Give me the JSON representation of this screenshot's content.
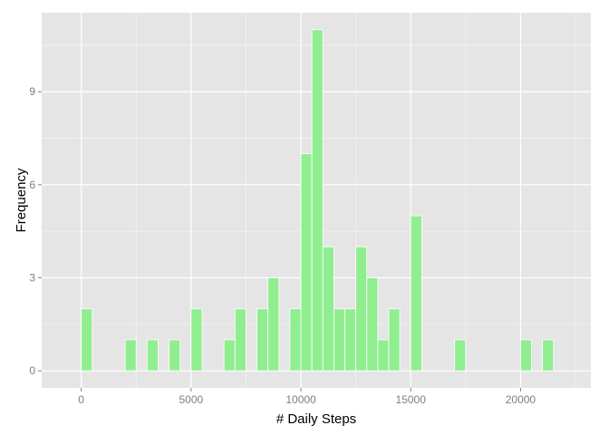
{
  "chart_data": {
    "type": "bar",
    "title": "",
    "xlabel": "# Daily Steps",
    "ylabel": "Frequency",
    "xlim": [
      -1800,
      23200
    ],
    "ylim": [
      -0.55,
      11.55
    ],
    "x_ticks": [
      0,
      5000,
      10000,
      15000,
      20000
    ],
    "x_tick_labels": [
      "0",
      "5000",
      "10000",
      "15000",
      "20000"
    ],
    "y_ticks": [
      0,
      3,
      6,
      9
    ],
    "y_tick_labels": [
      "0",
      "3",
      "6",
      "9"
    ],
    "grid": true,
    "bin_width": 500,
    "bins": [
      {
        "start": 0,
        "count": 2
      },
      {
        "start": 2000,
        "count": 1
      },
      {
        "start": 3000,
        "count": 1
      },
      {
        "start": 4000,
        "count": 1
      },
      {
        "start": 5000,
        "count": 2
      },
      {
        "start": 6500,
        "count": 1
      },
      {
        "start": 7000,
        "count": 2
      },
      {
        "start": 8000,
        "count": 2
      },
      {
        "start": 8500,
        "count": 3
      },
      {
        "start": 9500,
        "count": 2
      },
      {
        "start": 10000,
        "count": 7
      },
      {
        "start": 10500,
        "count": 11
      },
      {
        "start": 11000,
        "count": 4
      },
      {
        "start": 11500,
        "count": 2
      },
      {
        "start": 12000,
        "count": 2
      },
      {
        "start": 12500,
        "count": 4
      },
      {
        "start": 13000,
        "count": 3
      },
      {
        "start": 13500,
        "count": 1
      },
      {
        "start": 14000,
        "count": 2
      },
      {
        "start": 15000,
        "count": 5
      },
      {
        "start": 17000,
        "count": 1
      },
      {
        "start": 20000,
        "count": 1
      },
      {
        "start": 21000,
        "count": 1
      }
    ],
    "colors": {
      "panel_background": "#e5e5e5",
      "grid_major": "#ffffff",
      "grid_minor": "#f2f2f2",
      "bar_fill": "#90ee90",
      "bar_outline": "#ffffff"
    }
  }
}
